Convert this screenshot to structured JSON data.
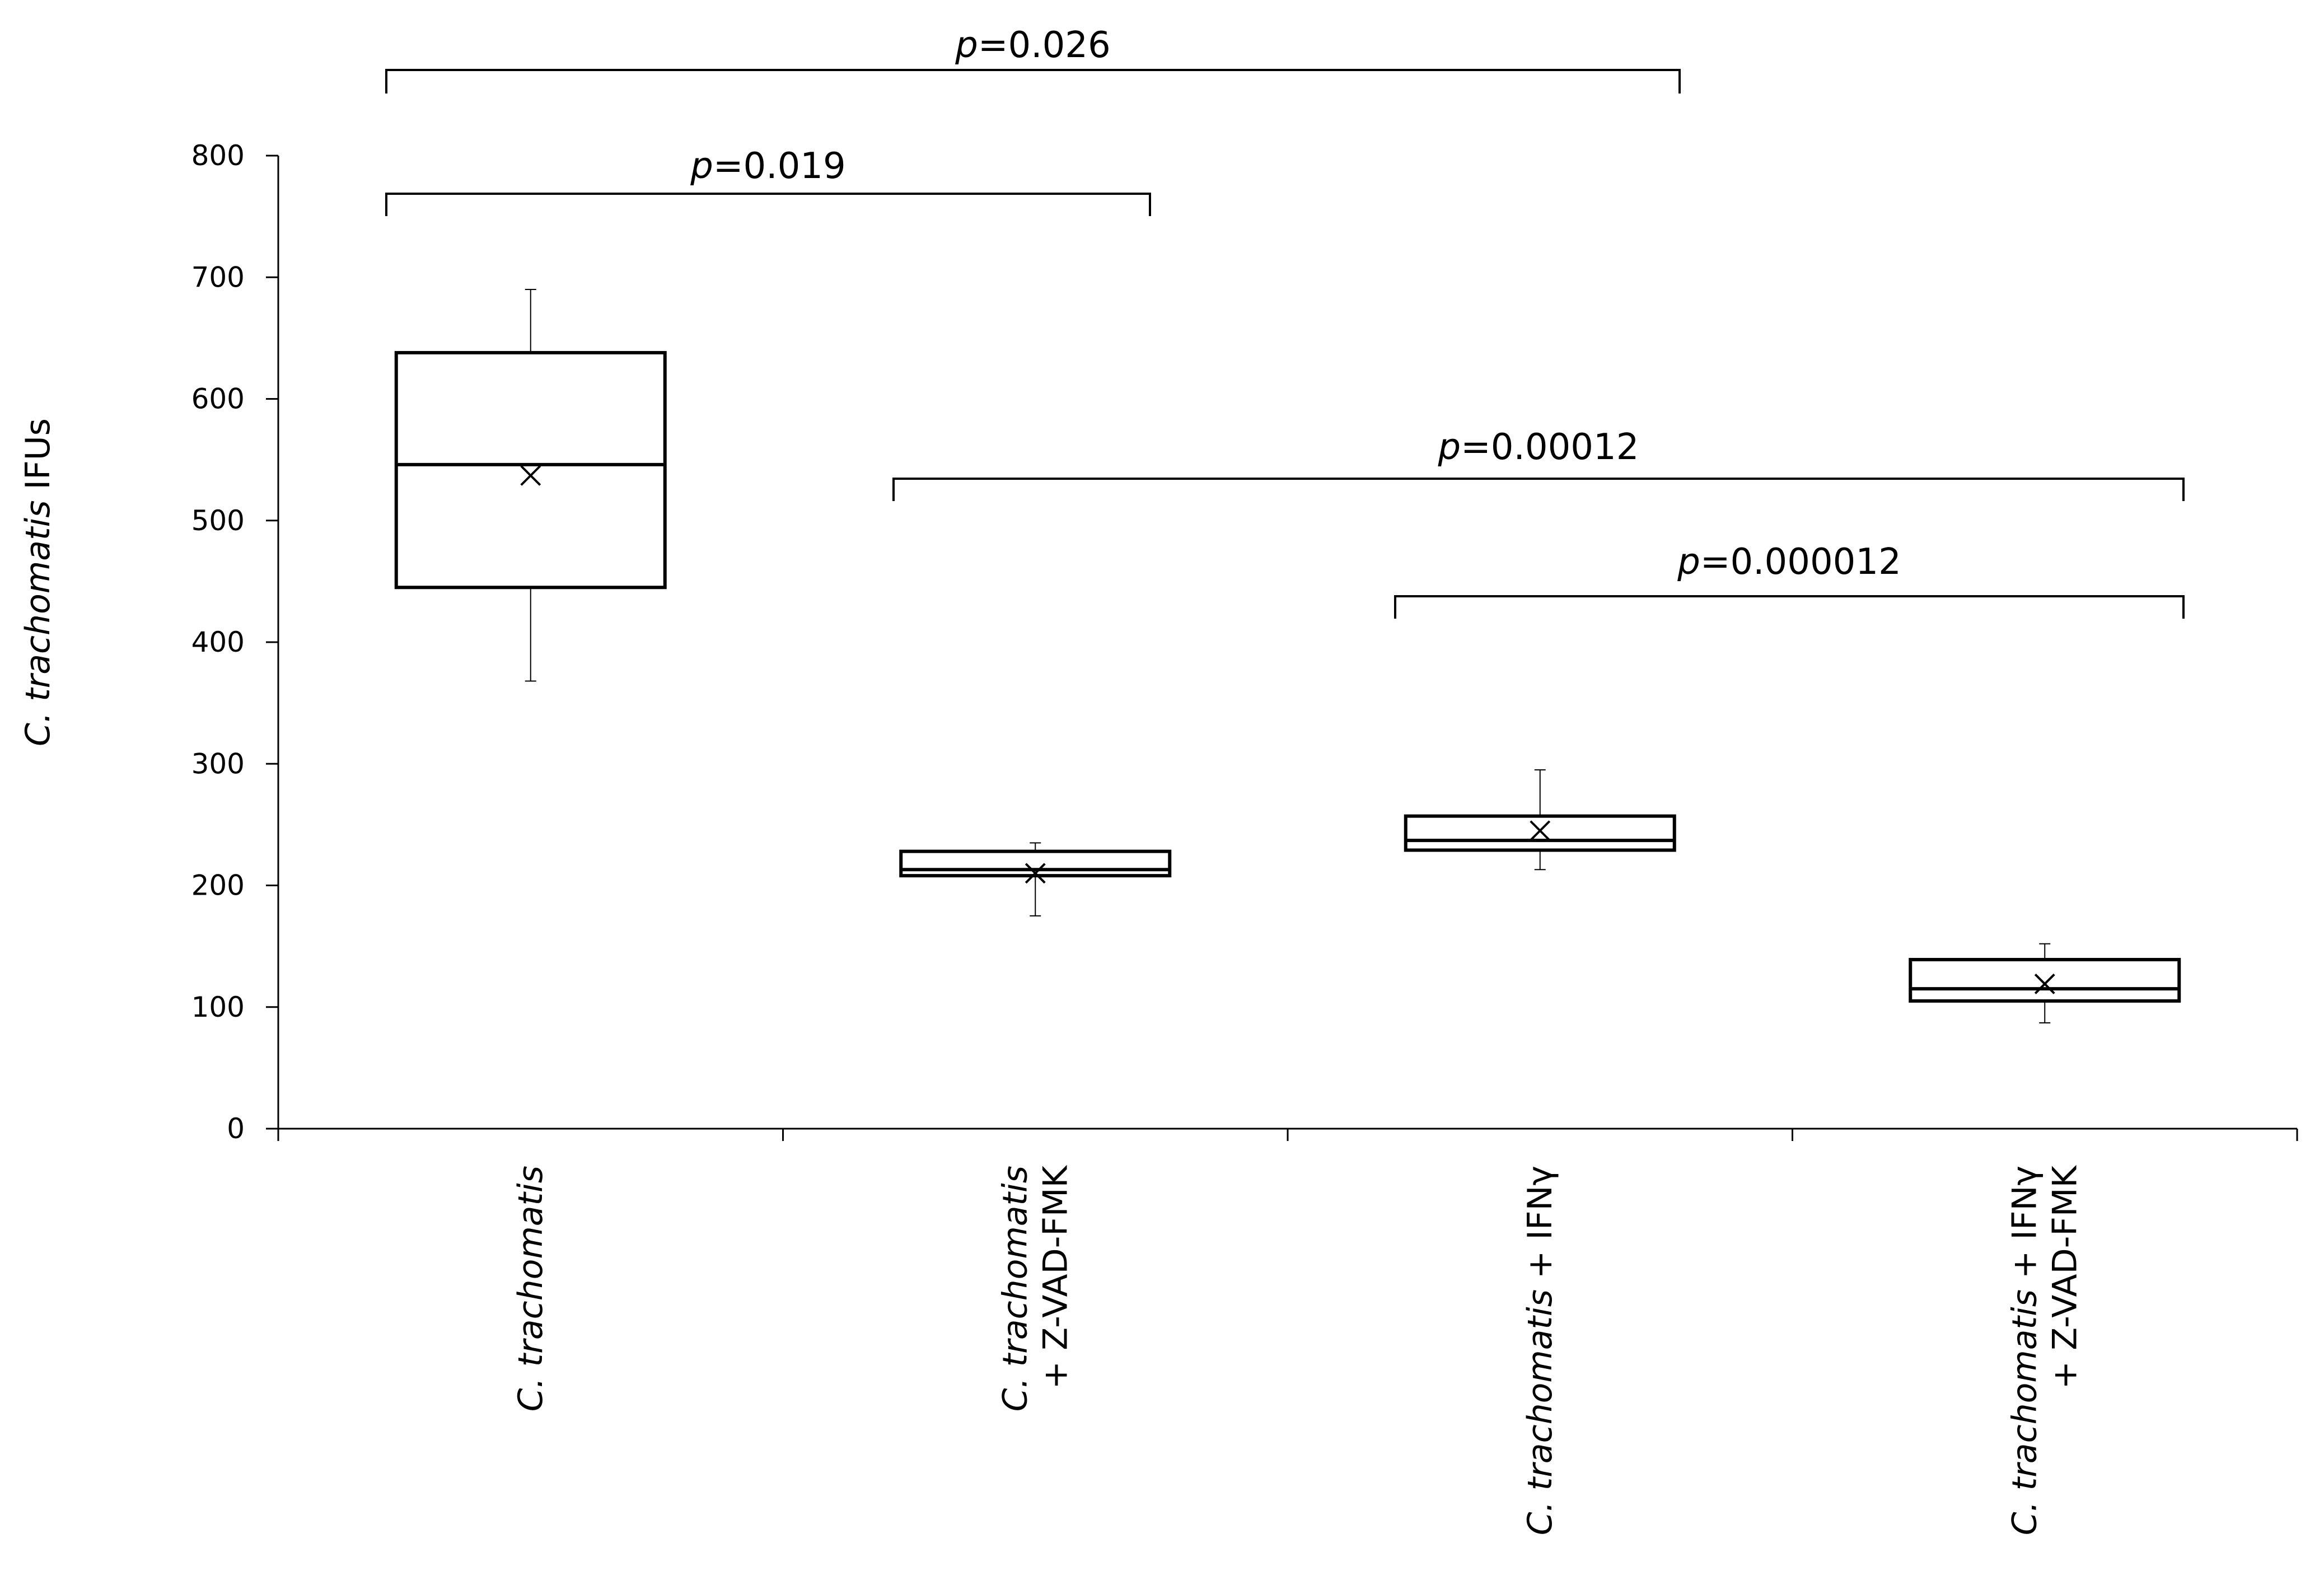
{
  "chart_data": {
    "type": "box",
    "ylabel": {
      "italic": "C. trachomatis",
      "rest": " IFUs"
    },
    "ylim": [
      0,
      800
    ],
    "yticks": [
      0,
      100,
      200,
      300,
      400,
      500,
      600,
      700,
      800
    ],
    "grid": false,
    "legend": "none",
    "categories": [
      {
        "lines": [
          [
            {
              "text": "C. trachomatis",
              "italic": true
            }
          ]
        ]
      },
      {
        "lines": [
          [
            {
              "text": "C. trachomatis",
              "italic": true
            }
          ],
          [
            {
              "text": "+ Z-VAD-FMK",
              "italic": false
            }
          ]
        ]
      },
      {
        "lines": [
          [
            {
              "text": "C. trachomatis",
              "italic": true
            },
            {
              "text": " + IFNγ",
              "italic": false
            }
          ]
        ]
      },
      {
        "lines": [
          [
            {
              "text": "C. trachomatis",
              "italic": true
            },
            {
              "text": " + IFNγ",
              "italic": false
            }
          ],
          [
            {
              "text": "+ Z-VAD-FMK",
              "italic": false
            }
          ]
        ]
      }
    ],
    "boxes": [
      {
        "whisker_low": 368,
        "q1": 445,
        "median": 546,
        "q3": 638,
        "whisker_high": 690,
        "mean": 537
      },
      {
        "whisker_low": 175,
        "q1": 208,
        "median": 213,
        "q3": 228,
        "whisker_high": 235,
        "mean": 210
      },
      {
        "whisker_low": 213,
        "q1": 229,
        "median": 237,
        "q3": 257,
        "whisker_high": 295,
        "mean": 245
      },
      {
        "whisker_low": 87,
        "q1": 105,
        "median": 115,
        "q3": 139,
        "whisker_high": 152,
        "mean": 119
      }
    ],
    "comparisons": [
      {
        "from": 0,
        "to": 2,
        "label_italic": "p",
        "label_rest": "=0.026"
      },
      {
        "from": 0,
        "to": 1,
        "label_italic": "p",
        "label_rest": "=0.019"
      },
      {
        "from": 1,
        "to": 3,
        "label_italic": "p",
        "label_rest": "=0.00012"
      },
      {
        "from": 2,
        "to": 3,
        "label_italic": "p",
        "label_rest": "=0.000012"
      }
    ]
  }
}
